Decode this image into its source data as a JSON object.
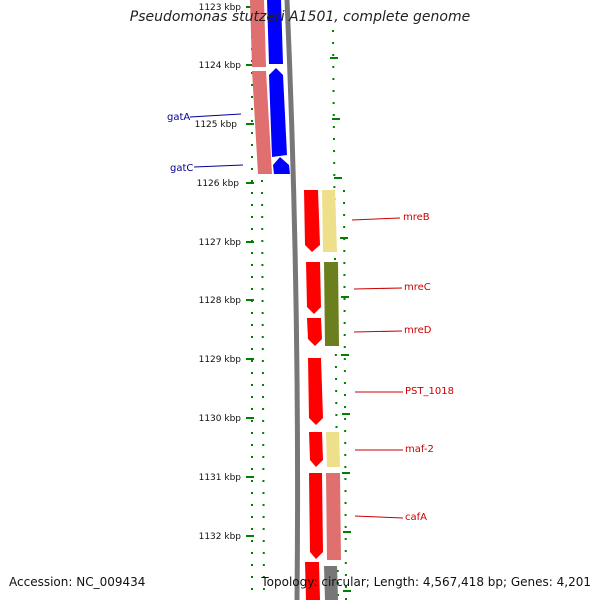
{
  "title": "Pseudomonas stutzeri A1501, complete genome",
  "footer": {
    "accession": "Accession: NC_009434",
    "topology": "Topology: circular; Length: 4,567,418 bp; Genes: 4,201"
  },
  "colors": {
    "backbone": "#777777",
    "tick": "#008000",
    "forward_cds": "#ff0000",
    "forward_shadow": "#e07070",
    "blue_cds": "#0000ff",
    "label_blue": "#000099",
    "label_red": "#cc0000",
    "cog_yellow": "#eee08a",
    "cog_olive": "#6b7f1f",
    "cog_salmon": "#e07070"
  },
  "kbp_ticks": [
    "1123 kbp",
    "1124 kbp",
    "1125 kbp",
    "1126 kbp",
    "1127 kbp",
    "1128 kbp",
    "1129 kbp",
    "1130 kbp",
    "1131 kbp",
    "1132 kbp"
  ],
  "genes": [
    {
      "name": "gatA",
      "strand": "minus"
    },
    {
      "name": "gatC",
      "strand": "minus"
    },
    {
      "name": "mreB",
      "strand": "plus"
    },
    {
      "name": "mreC",
      "strand": "plus"
    },
    {
      "name": "mreD",
      "strand": "plus"
    },
    {
      "name": "PST_1018",
      "strand": "plus"
    },
    {
      "name": "maf-2",
      "strand": "plus"
    },
    {
      "name": "cafA",
      "strand": "plus"
    }
  ]
}
